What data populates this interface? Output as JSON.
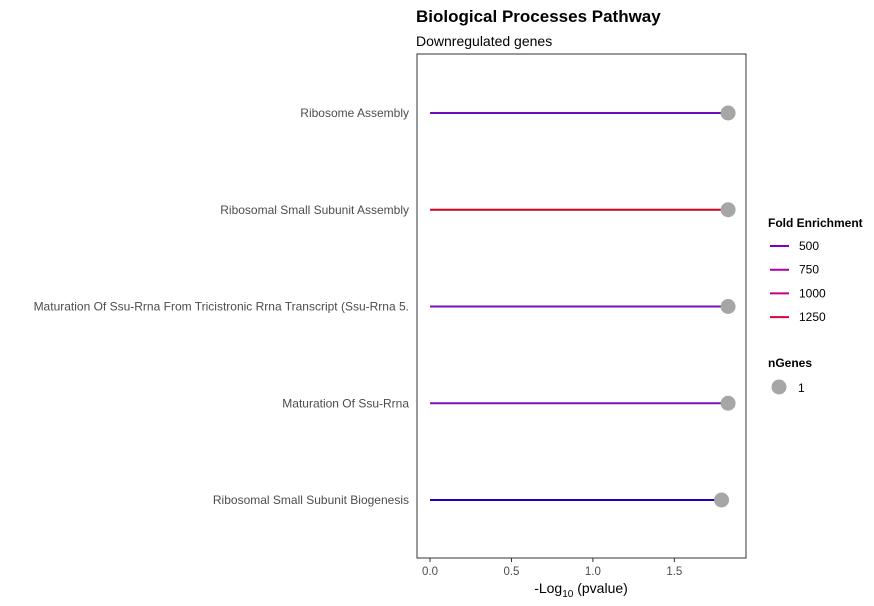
{
  "chart_data": {
    "type": "lollipop",
    "title": "Biological Processes Pathway",
    "subtitle": "Downregulated genes",
    "xlabel": {
      "prefix": "-Log",
      "subscript": "10",
      "suffix": " (pvalue)"
    },
    "xlim": [
      -0.08,
      1.94
    ],
    "xticks": [
      0.0,
      0.5,
      1.0,
      1.5
    ],
    "xtick_labels": [
      "0.0",
      "0.5",
      "1.0",
      "1.5"
    ],
    "grid": false,
    "categories": [
      "Ribosome Assembly",
      "Ribosomal Small Subunit Assembly",
      "Maturation Of Ssu-Rrna From Tricistronic Rrna Transcript (Ssu-Rrna 5.",
      "Maturation Of Ssu-Rrna",
      "Ribosomal Small Subunit Biogenesis"
    ],
    "values": [
      1.83,
      1.83,
      1.83,
      1.83,
      1.79
    ],
    "segment_colors": [
      "#6a0dbd",
      "#d0001f",
      "#7a10c0",
      "#7a10c0",
      "#1a00b8"
    ],
    "point_color": "#a6a6a6",
    "legend_position": "right",
    "legend_color": {
      "title": "Fold Enrichment",
      "items": [
        {
          "label": "500",
          "color": "#7a00cc"
        },
        {
          "label": "750",
          "color": "#a800aa"
        },
        {
          "label": "1000",
          "color": "#c80080"
        },
        {
          "label": "1250",
          "color": "#e0003c"
        }
      ]
    },
    "legend_size": {
      "title": "nGenes",
      "items": [
        {
          "label": "1",
          "color": "#a6a6a6"
        }
      ]
    }
  }
}
